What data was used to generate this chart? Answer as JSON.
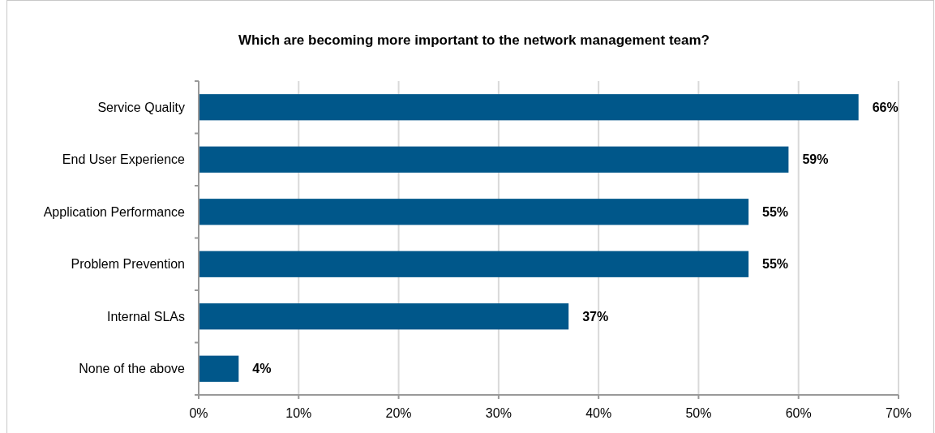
{
  "chart_data": {
    "type": "bar",
    "orientation": "horizontal",
    "title": "Which are becoming more important to the network management team?",
    "categories": [
      "Service Quality",
      "End User Experience",
      "Application Performance",
      "Problem Prevention",
      "Internal SLAs",
      "None of the above"
    ],
    "values": [
      66,
      59,
      55,
      55,
      37,
      4
    ],
    "color": "#00578a",
    "xlim": [
      0,
      70
    ],
    "xticks": [
      {
        "value": 0,
        "label": "0%"
      },
      {
        "value": 10,
        "label": "10%"
      },
      {
        "value": 20,
        "label": "20%"
      },
      {
        "value": 30,
        "label": "30%"
      },
      {
        "value": 40,
        "label": "40%"
      },
      {
        "value": 50,
        "label": "50%"
      },
      {
        "value": 60,
        "label": "60%"
      },
      {
        "value": 70,
        "label": "70%"
      }
    ],
    "grid": "x",
    "value_labels": [
      "66%",
      "59%",
      "55%",
      "55%",
      "37%",
      "4%"
    ]
  }
}
